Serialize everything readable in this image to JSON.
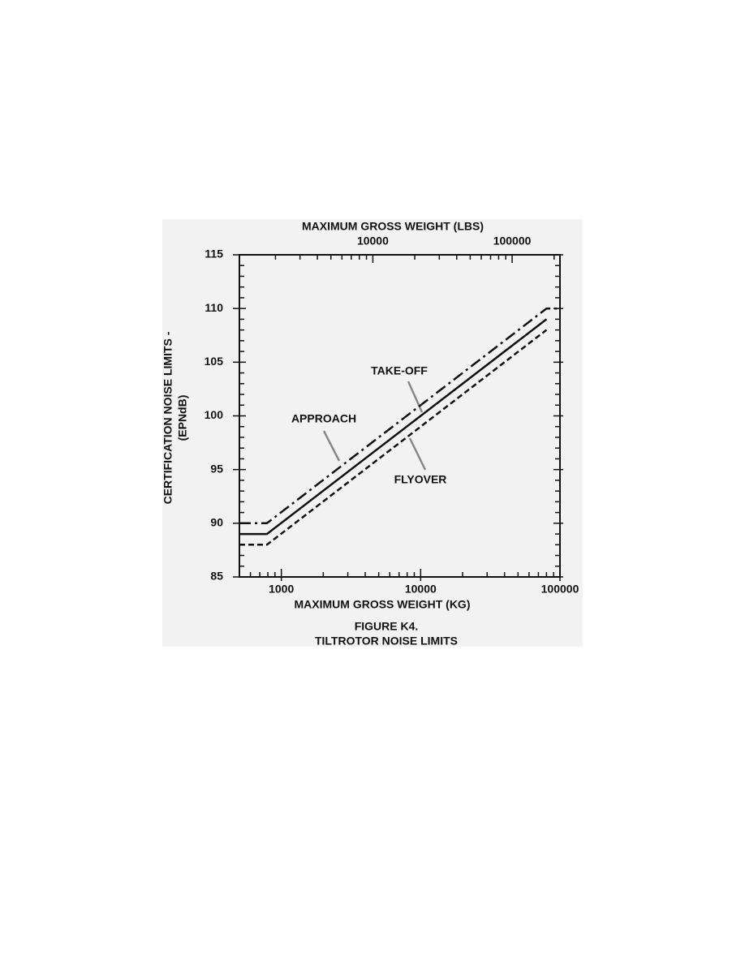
{
  "chart_data": {
    "type": "line",
    "title": "FIGURE K4.",
    "subtitle": "TILTROTOR NOISE LIMITS",
    "x_label": "MAXIMUM GROSS WEIGHT (KG)",
    "x2_label": "MAXIMUM GROSS WEIGHT (LBS)",
    "y_label": [
      "CERTIFICATION NOISE LIMITS -",
      "(EPNdB)"
    ],
    "xscale": "log",
    "xlim": [
      500,
      100000
    ],
    "xticks": [
      1000,
      10000,
      100000
    ],
    "xminor_ticks": [
      600,
      700,
      800,
      900,
      2000,
      3000,
      4000,
      5000,
      6000,
      7000,
      8000,
      9000,
      20000,
      30000,
      40000,
      50000,
      60000,
      70000,
      80000,
      90000
    ],
    "x2lim": [
      1102,
      220462
    ],
    "x2ticks": [
      10000,
      100000
    ],
    "x2minor_ticks": [
      2000,
      3000,
      4000,
      5000,
      6000,
      7000,
      8000,
      9000,
      20000,
      30000,
      40000,
      50000,
      60000,
      70000,
      80000,
      90000,
      200000
    ],
    "ylim": [
      85,
      115
    ],
    "yticks": [
      85,
      90,
      95,
      100,
      105,
      110,
      115
    ],
    "yminor_ticks": [
      86,
      87,
      88,
      89,
      91,
      92,
      93,
      94,
      96,
      97,
      98,
      99,
      101,
      102,
      103,
      104,
      106,
      107,
      108,
      109,
      111,
      112,
      113,
      114
    ],
    "grid": false,
    "series": [
      {
        "name": "APPROACH",
        "color": "#111111",
        "dash": "dash-dot",
        "x": [
          500,
          788,
          80000,
          100000
        ],
        "values": [
          90,
          90,
          110,
          110
        ]
      },
      {
        "name": "TAKE-OFF",
        "color": "#111111",
        "dash": "solid",
        "x": [
          500,
          788,
          80000
        ],
        "values": [
          89,
          89,
          109
        ]
      },
      {
        "name": "FLYOVER",
        "color": "#111111",
        "dash": "dashed",
        "x": [
          500,
          788,
          80000
        ],
        "values": [
          88,
          88,
          108
        ]
      }
    ]
  }
}
